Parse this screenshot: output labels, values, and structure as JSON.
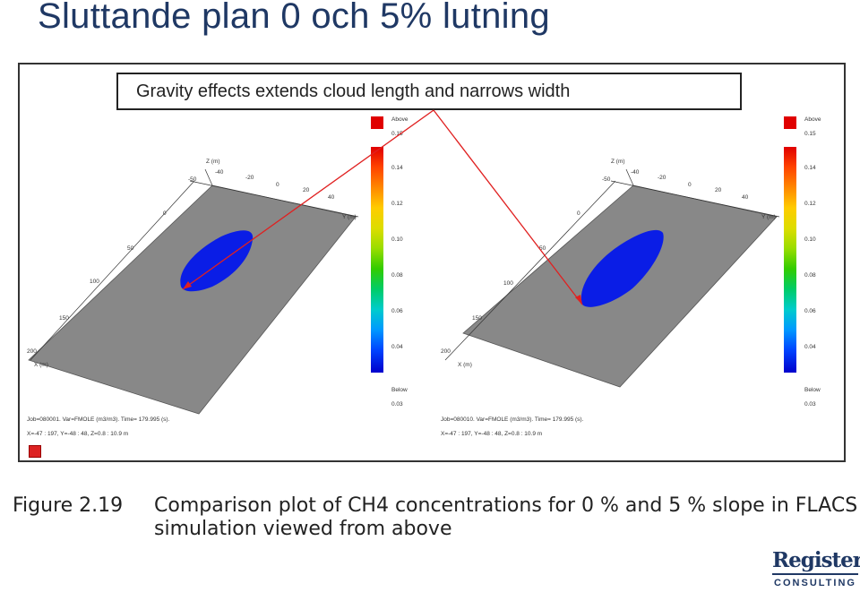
{
  "title": "Sluttande plan 0 och 5% lutning",
  "banner": "Gravity effects  extends cloud length  and narrows width",
  "plots": [
    {
      "legend": {
        "above_label": "Above",
        "above_value": "0.15",
        "values": [
          "0.14",
          "0.12",
          "0.10",
          "0.08",
          "0.06",
          "0.04"
        ],
        "below_label": "Below",
        "below_value": "0.03"
      },
      "axis_z": "Z (m)",
      "axis_y": "Y (m)",
      "axis_x": "X (m)",
      "z_ticks": [
        "-50",
        "-40",
        "-20",
        "0",
        "20",
        "40"
      ],
      "x_ticks": [
        "0",
        "50",
        "100",
        "150",
        "200"
      ],
      "info_line1": "Job=080001.  Var=FMOLE (m3/m3). Time= 179.995 (s).",
      "info_line2": "X=-47 : 197, Y=-48 : 48, Z=0.8 : 10.9 m"
    },
    {
      "legend": {
        "above_label": "Above",
        "above_value": "0.15",
        "values": [
          "0.14",
          "0.12",
          "0.10",
          "0.08",
          "0.06",
          "0.04"
        ],
        "below_label": "Below",
        "below_value": "0.03"
      },
      "axis_z": "Z (m)",
      "axis_y": "Y (m)",
      "axis_x": "X (m)",
      "z_ticks": [
        "-50",
        "-40",
        "-20",
        "0",
        "20",
        "40"
      ],
      "x_ticks": [
        "0",
        "50",
        "100",
        "150",
        "200"
      ],
      "info_line1": "Job=080010.  Var=FMOLE (m3/m3). Time= 179.995 (s).",
      "info_line2": "X=-47 : 197, Y=-48 : 48, Z=0.8 : 10.9 m"
    }
  ],
  "colors": {
    "title": "#1f3864",
    "plane": "#888888",
    "cloud": "#0a1de6",
    "arrow": "#e02020",
    "legend_scale": [
      "#e00000",
      "#ff4400",
      "#ff8800",
      "#ffcc00",
      "#dddd00",
      "#99dd00",
      "#33cc00",
      "#00cc66",
      "#00cccc",
      "#0099ff",
      "#0044ff",
      "#0000cc"
    ]
  },
  "caption": {
    "number": "Figure 2.19",
    "line1": "Comparison plot of CH4 concentrations for 0 % and 5 % slope in FLACS",
    "line2": "simulation viewed from above"
  },
  "logo": {
    "top": "Register",
    "bottom": "CONSULTING"
  }
}
